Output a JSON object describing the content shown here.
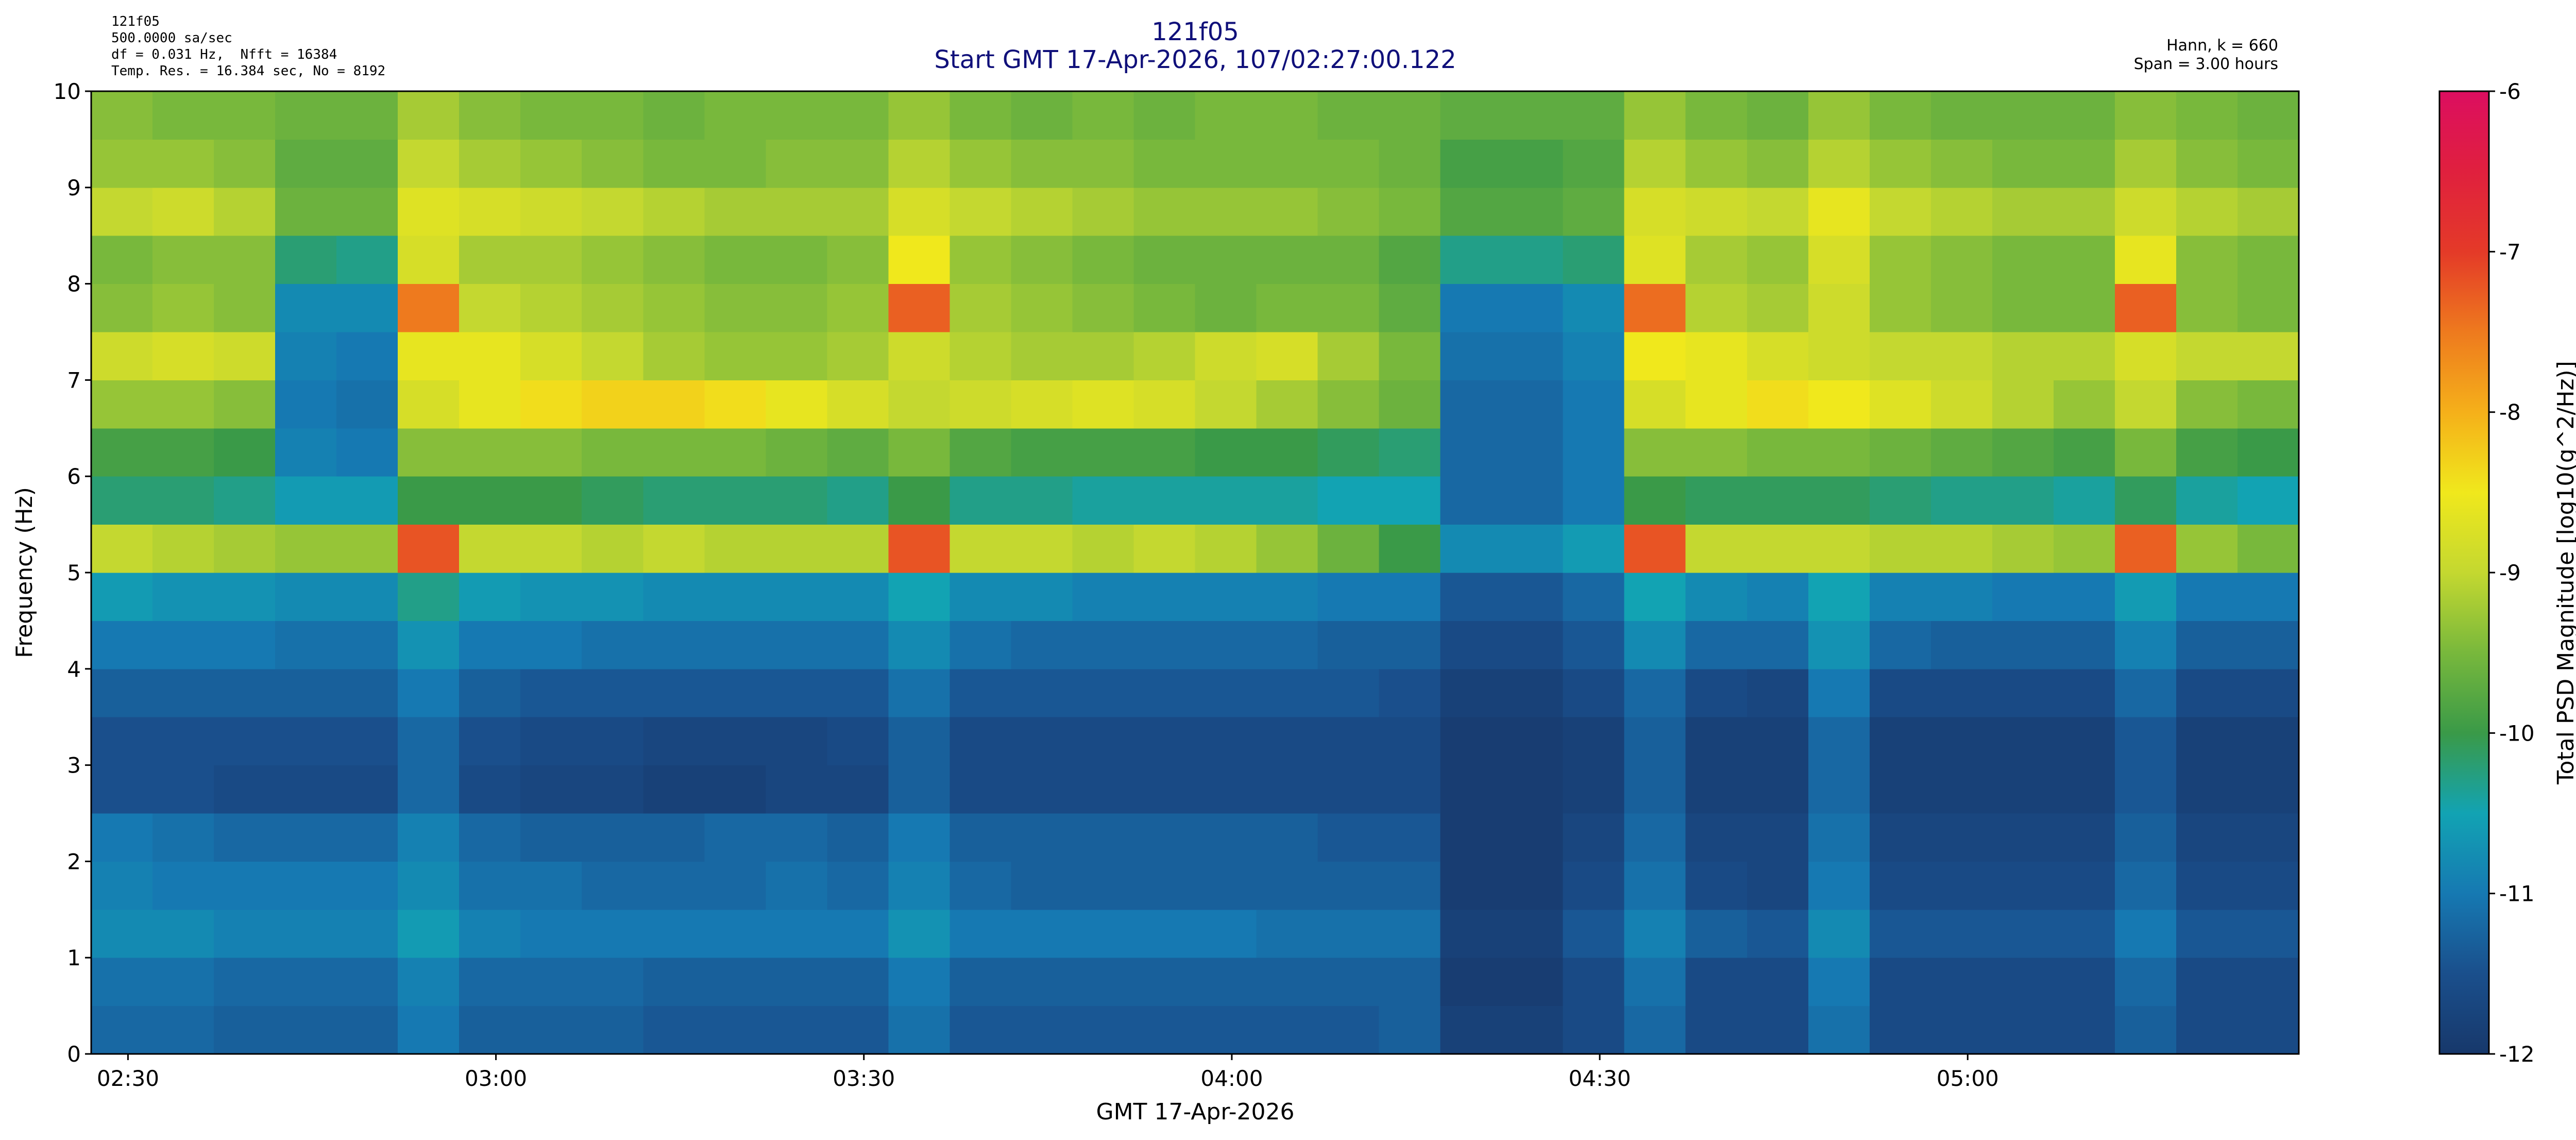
{
  "chart_data": {
    "type": "heatmap",
    "title": "121f05",
    "subtitle": "Start GMT 17-Apr-2026, 107/02:27:00.122",
    "header_left": [
      "121f05",
      "500.0000 sa/sec",
      "df = 0.031 Hz,  Nfft = 16384",
      "Temp. Res. = 16.384 sec, No = 8192"
    ],
    "header_right": [
      "Hann, k = 660",
      "Span = 3.00 hours"
    ],
    "xlabel": "GMT 17-Apr-2026",
    "ylabel": "Frequency (Hz)",
    "colorbar_label": "Total PSD Magnitude [log10(g^2/Hz)]",
    "xlim": [
      0,
      180
    ],
    "xticks": [
      {
        "value": 3,
        "label": "02:30"
      },
      {
        "value": 33,
        "label": "03:00"
      },
      {
        "value": 63,
        "label": "03:30"
      },
      {
        "value": 93,
        "label": "04:00"
      },
      {
        "value": 123,
        "label": "04:30"
      },
      {
        "value": 153,
        "label": "05:00"
      }
    ],
    "ylim": [
      0,
      10
    ],
    "yticks": [
      0,
      1,
      2,
      3,
      4,
      5,
      6,
      7,
      8,
      9,
      10
    ],
    "clim": [
      -12,
      -6
    ],
    "cticks": [
      -12,
      -11,
      -10,
      -9,
      -8,
      -7,
      -6
    ],
    "colormap": [
      "#17386b",
      "#1a4f8c",
      "#1679b2",
      "#12a3b3",
      "#3a9a48",
      "#78b83c",
      "#c4d830",
      "#f0e81c",
      "#f5b01a",
      "#ee7a1e",
      "#e43a28",
      "#e0203e",
      "#dc0e60"
    ],
    "xbins": [
      0,
      5,
      10,
      15,
      20,
      25,
      30,
      35,
      40,
      45,
      50,
      55,
      60,
      65,
      70,
      75,
      80,
      85,
      90,
      95,
      100,
      105,
      110,
      115,
      120,
      125,
      130,
      135,
      140,
      145,
      150,
      155,
      160,
      165,
      170,
      175,
      180
    ],
    "ybins": [
      0,
      0.5,
      1,
      1.5,
      2,
      2.5,
      3,
      3.5,
      4,
      4.5,
      5,
      5.5,
      6,
      6.5,
      7,
      7.5,
      8,
      8.5,
      9,
      9.5,
      10
    ],
    "z": [
      [
        -11.2,
        -11.2,
        -11.3,
        -11.3,
        -11.3,
        -11.0,
        -11.3,
        -11.3,
        -11.3,
        -11.4,
        -11.4,
        -11.4,
        -11.4,
        -11.1,
        -11.4,
        -11.4,
        -11.4,
        -11.4,
        -11.4,
        -11.4,
        -11.4,
        -11.3,
        -11.8,
        -11.8,
        -11.6,
        -11.2,
        -11.6,
        -11.6,
        -11.1,
        -11.6,
        -11.6,
        -11.6,
        -11.6,
        -11.3,
        -11.6,
        -11.6
      ],
      [
        -11.1,
        -11.1,
        -11.2,
        -11.2,
        -11.2,
        -10.9,
        -11.2,
        -11.2,
        -11.2,
        -11.3,
        -11.3,
        -11.3,
        -11.3,
        -11.0,
        -11.3,
        -11.3,
        -11.3,
        -11.3,
        -11.3,
        -11.3,
        -11.3,
        -11.3,
        -11.9,
        -11.9,
        -11.6,
        -11.1,
        -11.6,
        -11.6,
        -11.0,
        -11.6,
        -11.6,
        -11.6,
        -11.6,
        -11.2,
        -11.6,
        -11.6
      ],
      [
        -10.8,
        -10.8,
        -10.9,
        -10.9,
        -10.9,
        -10.6,
        -10.9,
        -11.0,
        -11.0,
        -11.0,
        -11.0,
        -11.0,
        -11.0,
        -10.7,
        -11.0,
        -11.0,
        -11.0,
        -11.0,
        -11.0,
        -11.1,
        -11.1,
        -11.1,
        -11.8,
        -11.8,
        -11.4,
        -10.9,
        -11.3,
        -11.4,
        -10.8,
        -11.4,
        -11.4,
        -11.4,
        -11.4,
        -11.0,
        -11.4,
        -11.4
      ],
      [
        -10.9,
        -11.0,
        -11.0,
        -11.0,
        -11.0,
        -10.8,
        -11.1,
        -11.1,
        -11.2,
        -11.2,
        -11.2,
        -11.1,
        -11.2,
        -10.9,
        -11.2,
        -11.3,
        -11.3,
        -11.3,
        -11.3,
        -11.3,
        -11.3,
        -11.3,
        -11.9,
        -11.9,
        -11.6,
        -11.1,
        -11.6,
        -11.7,
        -11.0,
        -11.6,
        -11.6,
        -11.6,
        -11.6,
        -11.2,
        -11.6,
        -11.6
      ],
      [
        -11.0,
        -11.1,
        -11.2,
        -11.2,
        -11.2,
        -10.9,
        -11.2,
        -11.3,
        -11.3,
        -11.3,
        -11.2,
        -11.2,
        -11.3,
        -11.0,
        -11.3,
        -11.3,
        -11.3,
        -11.3,
        -11.3,
        -11.3,
        -11.4,
        -11.4,
        -11.9,
        -11.9,
        -11.7,
        -11.2,
        -11.7,
        -11.7,
        -11.1,
        -11.7,
        -11.7,
        -11.7,
        -11.7,
        -11.3,
        -11.7,
        -11.7
      ],
      [
        -11.5,
        -11.5,
        -11.6,
        -11.6,
        -11.6,
        -11.2,
        -11.6,
        -11.7,
        -11.7,
        -11.8,
        -11.8,
        -11.7,
        -11.7,
        -11.3,
        -11.6,
        -11.6,
        -11.6,
        -11.6,
        -11.6,
        -11.6,
        -11.6,
        -11.6,
        -11.9,
        -11.9,
        -11.8,
        -11.3,
        -11.8,
        -11.8,
        -11.2,
        -11.8,
        -11.8,
        -11.8,
        -11.8,
        -11.4,
        -11.8,
        -11.8
      ],
      [
        -11.5,
        -11.5,
        -11.5,
        -11.5,
        -11.5,
        -11.2,
        -11.5,
        -11.6,
        -11.6,
        -11.7,
        -11.7,
        -11.7,
        -11.6,
        -11.3,
        -11.6,
        -11.6,
        -11.6,
        -11.6,
        -11.6,
        -11.6,
        -11.6,
        -11.6,
        -11.9,
        -11.9,
        -11.8,
        -11.3,
        -11.8,
        -11.8,
        -11.2,
        -11.8,
        -11.8,
        -11.8,
        -11.8,
        -11.4,
        -11.8,
        -11.8
      ],
      [
        -11.3,
        -11.3,
        -11.3,
        -11.3,
        -11.3,
        -11.0,
        -11.3,
        -11.4,
        -11.4,
        -11.4,
        -11.4,
        -11.4,
        -11.4,
        -11.1,
        -11.4,
        -11.4,
        -11.4,
        -11.4,
        -11.4,
        -11.4,
        -11.4,
        -11.5,
        -11.8,
        -11.8,
        -11.6,
        -11.2,
        -11.6,
        -11.7,
        -11.0,
        -11.6,
        -11.6,
        -11.6,
        -11.6,
        -11.2,
        -11.6,
        -11.6
      ],
      [
        -11.0,
        -11.0,
        -11.0,
        -11.1,
        -11.1,
        -10.7,
        -11.0,
        -11.0,
        -11.1,
        -11.1,
        -11.1,
        -11.1,
        -11.1,
        -10.8,
        -11.1,
        -11.2,
        -11.2,
        -11.2,
        -11.2,
        -11.2,
        -11.3,
        -11.3,
        -11.6,
        -11.6,
        -11.4,
        -10.8,
        -11.2,
        -11.2,
        -10.7,
        -11.2,
        -11.3,
        -11.3,
        -11.3,
        -10.9,
        -11.3,
        -11.3
      ],
      [
        -10.6,
        -10.7,
        -10.7,
        -10.8,
        -10.8,
        -10.3,
        -10.6,
        -10.7,
        -10.7,
        -10.8,
        -10.8,
        -10.8,
        -10.8,
        -10.5,
        -10.8,
        -10.8,
        -10.9,
        -10.9,
        -10.9,
        -10.9,
        -11.0,
        -11.0,
        -11.4,
        -11.4,
        -11.2,
        -10.5,
        -10.8,
        -10.9,
        -10.5,
        -10.9,
        -10.9,
        -11.0,
        -11.0,
        -10.6,
        -11.0,
        -11.0
      ],
      [
        -9.0,
        -9.1,
        -9.2,
        -9.3,
        -9.3,
        -7.2,
        -9.0,
        -9.0,
        -9.1,
        -9.0,
        -9.1,
        -9.1,
        -9.1,
        -7.2,
        -9.0,
        -9.0,
        -9.1,
        -9.0,
        -9.1,
        -9.3,
        -9.6,
        -10.0,
        -10.8,
        -10.8,
        -10.6,
        -7.2,
        -9.0,
        -9.0,
        -9.0,
        -9.1,
        -9.1,
        -9.2,
        -9.3,
        -7.3,
        -9.3,
        -9.5
      ],
      [
        -10.2,
        -10.2,
        -10.3,
        -10.6,
        -10.6,
        -10.0,
        -10.0,
        -10.0,
        -10.1,
        -10.2,
        -10.2,
        -10.2,
        -10.3,
        -10.0,
        -10.3,
        -10.3,
        -10.4,
        -10.4,
        -10.4,
        -10.4,
        -10.5,
        -10.5,
        -11.2,
        -11.2,
        -11.0,
        -10.0,
        -10.1,
        -10.1,
        -10.1,
        -10.2,
        -10.3,
        -10.3,
        -10.4,
        -10.1,
        -10.4,
        -10.5
      ],
      [
        -9.9,
        -9.9,
        -10.0,
        -10.9,
        -11.0,
        -9.4,
        -9.4,
        -9.4,
        -9.5,
        -9.5,
        -9.5,
        -9.6,
        -9.7,
        -9.5,
        -9.8,
        -9.9,
        -9.9,
        -9.9,
        -10.0,
        -10.0,
        -10.1,
        -10.2,
        -11.2,
        -11.2,
        -11.0,
        -9.4,
        -9.4,
        -9.5,
        -9.5,
        -9.6,
        -9.7,
        -9.8,
        -9.9,
        -9.5,
        -9.9,
        -10.0
      ],
      [
        -9.3,
        -9.3,
        -9.4,
        -11.0,
        -11.1,
        -8.8,
        -8.6,
        -8.4,
        -8.3,
        -8.3,
        -8.4,
        -8.6,
        -8.8,
        -9.0,
        -8.9,
        -8.8,
        -8.7,
        -8.8,
        -9.0,
        -9.2,
        -9.4,
        -9.6,
        -11.2,
        -11.2,
        -11.0,
        -8.8,
        -8.6,
        -8.4,
        -8.5,
        -8.7,
        -8.9,
        -9.1,
        -9.3,
        -9.0,
        -9.4,
        -9.5
      ],
      [
        -8.9,
        -8.8,
        -8.9,
        -10.9,
        -11.0,
        -8.6,
        -8.6,
        -8.8,
        -9.0,
        -9.2,
        -9.3,
        -9.3,
        -9.2,
        -8.9,
        -9.1,
        -9.2,
        -9.2,
        -9.1,
        -8.9,
        -8.8,
        -9.2,
        -9.5,
        -11.1,
        -11.1,
        -10.9,
        -8.5,
        -8.6,
        -8.8,
        -8.9,
        -9.0,
        -9.0,
        -9.1,
        -9.1,
        -8.8,
        -9.0,
        -9.0
      ],
      [
        -9.4,
        -9.3,
        -9.4,
        -10.8,
        -10.8,
        -7.5,
        -9.0,
        -9.1,
        -9.2,
        -9.3,
        -9.4,
        -9.4,
        -9.3,
        -7.3,
        -9.2,
        -9.3,
        -9.4,
        -9.5,
        -9.6,
        -9.5,
        -9.5,
        -9.7,
        -11.0,
        -11.0,
        -10.8,
        -7.4,
        -9.1,
        -9.2,
        -8.9,
        -9.3,
        -9.4,
        -9.5,
        -9.5,
        -7.3,
        -9.4,
        -9.5
      ],
      [
        -9.5,
        -9.4,
        -9.4,
        -10.2,
        -10.3,
        -8.8,
        -9.2,
        -9.2,
        -9.3,
        -9.4,
        -9.5,
        -9.5,
        -9.4,
        -8.5,
        -9.3,
        -9.4,
        -9.5,
        -9.6,
        -9.6,
        -9.6,
        -9.6,
        -9.8,
        -10.3,
        -10.3,
        -10.2,
        -8.7,
        -9.2,
        -9.3,
        -8.8,
        -9.3,
        -9.4,
        -9.5,
        -9.5,
        -8.6,
        -9.4,
        -9.5
      ],
      [
        -9.0,
        -8.9,
        -9.1,
        -9.6,
        -9.6,
        -8.7,
        -8.8,
        -8.9,
        -9.0,
        -9.1,
        -9.2,
        -9.2,
        -9.2,
        -8.8,
        -9.0,
        -9.1,
        -9.2,
        -9.3,
        -9.3,
        -9.3,
        -9.4,
        -9.5,
        -9.8,
        -9.8,
        -9.7,
        -8.8,
        -8.9,
        -9.0,
        -8.6,
        -9.0,
        -9.1,
        -9.2,
        -9.2,
        -8.9,
        -9.1,
        -9.2
      ],
      [
        -9.3,
        -9.3,
        -9.4,
        -9.7,
        -9.7,
        -9.0,
        -9.2,
        -9.3,
        -9.4,
        -9.5,
        -9.5,
        -9.4,
        -9.4,
        -9.1,
        -9.3,
        -9.4,
        -9.4,
        -9.5,
        -9.5,
        -9.5,
        -9.5,
        -9.6,
        -9.9,
        -9.9,
        -9.8,
        -9.1,
        -9.3,
        -9.4,
        -9.1,
        -9.3,
        -9.4,
        -9.5,
        -9.5,
        -9.2,
        -9.4,
        -9.5
      ],
      [
        -9.4,
        -9.5,
        -9.5,
        -9.6,
        -9.6,
        -9.2,
        -9.4,
        -9.5,
        -9.5,
        -9.6,
        -9.5,
        -9.5,
        -9.5,
        -9.3,
        -9.5,
        -9.6,
        -9.5,
        -9.6,
        -9.5,
        -9.5,
        -9.6,
        -9.6,
        -9.7,
        -9.7,
        -9.7,
        -9.3,
        -9.5,
        -9.6,
        -9.3,
        -9.5,
        -9.6,
        -9.6,
        -9.6,
        -9.4,
        -9.5,
        -9.6
      ]
    ]
  }
}
